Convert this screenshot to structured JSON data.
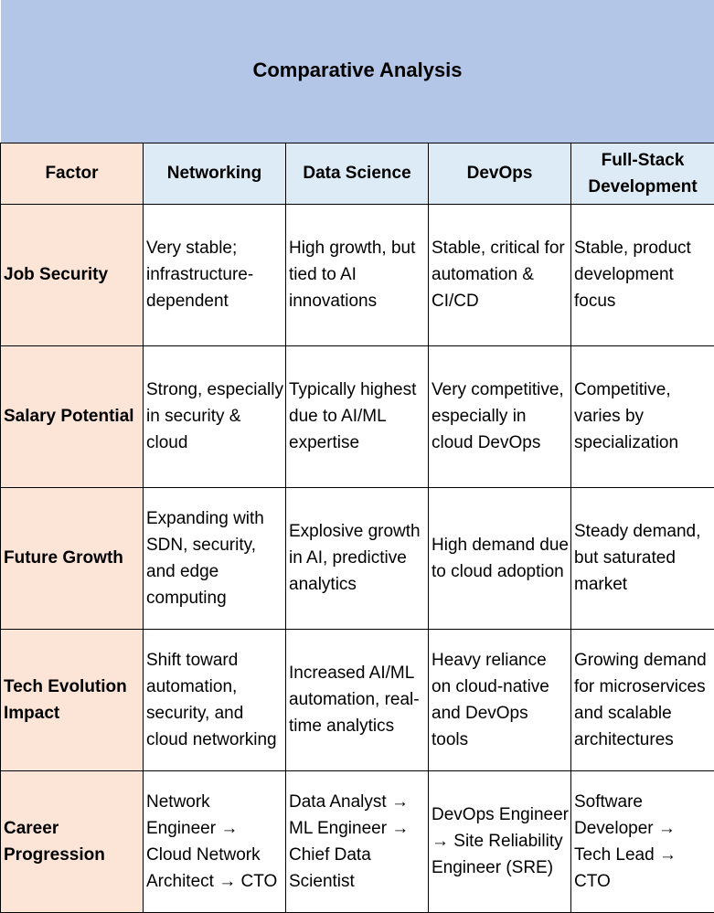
{
  "title": "Comparative Analysis",
  "columns": [
    "Factor",
    "Networking",
    "Data Science",
    "DevOps",
    "Full-Stack Development"
  ],
  "colors": {
    "title_bg": "#b4c6e7",
    "header_bg": "#ddebf7",
    "factor_bg": "#fce4d6"
  },
  "rows": [
    {
      "factor": "Job Security",
      "cells": [
        "Very stable; infrastructure-dependent",
        "High growth, but tied to AI innovations",
        "Stable, critical for automation & CI/CD",
        "Stable, product development focus"
      ]
    },
    {
      "factor": "Salary Potential",
      "cells": [
        "Strong, especially in security & cloud",
        "Typically highest due to AI/ML expertise",
        "Very competitive, especially in cloud DevOps",
        "Competitive, varies by specialization"
      ]
    },
    {
      "factor": "Future Growth",
      "cells": [
        "Expanding with SDN, security, and edge computing",
        "Explosive growth in AI, predictive analytics",
        "High demand due to cloud adoption",
        "Steady demand, but saturated market"
      ]
    },
    {
      "factor": "Tech Evolution Impact",
      "cells": [
        "Shift toward automation, security, and cloud networking",
        "Increased AI/ML automation, real-time analytics",
        "Heavy reliance on cloud-native and DevOps tools",
        "Growing demand for microservices and scalable architectures"
      ]
    },
    {
      "factor": "Career Progression",
      "cells": [
        "Network Engineer → Cloud Network Architect → CTO",
        "Data Analyst → ML Engineer → Chief Data Scientist",
        "DevOps Engineer → Site Reliability Engineer (SRE)",
        "Software Developer → Tech Lead → CTO"
      ]
    }
  ]
}
